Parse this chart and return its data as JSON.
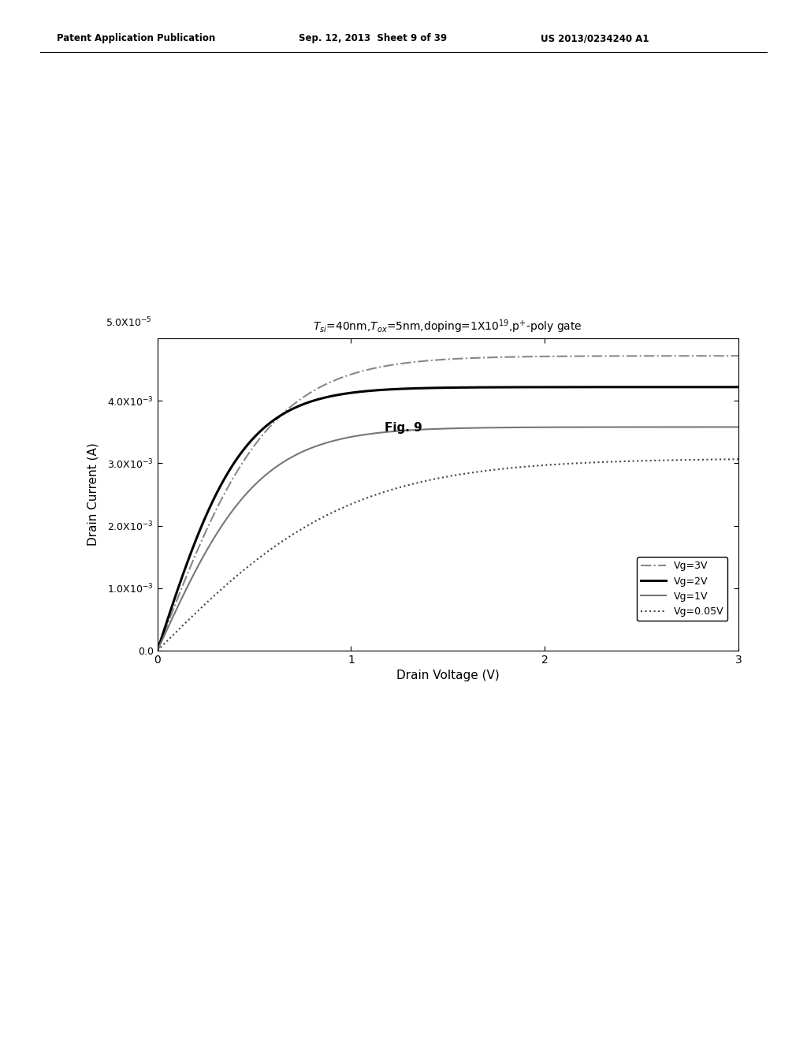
{
  "fig_label": "Fig. 9",
  "patent_header_left": "Patent Application Publication",
  "patent_header_mid": "Sep. 12, 2013  Sheet 9 of 39",
  "patent_header_right": "US 2013/0234240 A1",
  "xlabel": "Drain Voltage (V)",
  "ylabel": "Drain Current (A)",
  "xlim": [
    0,
    3
  ],
  "ylim": [
    0,
    0.005
  ],
  "background_color": "#ffffff",
  "curve_params": [
    {
      "Idsat": 0.00472,
      "vsat": 1.05,
      "label": "Vg=3V",
      "ls": "-.",
      "color": "#888888",
      "lw": 1.5
    },
    {
      "Idsat": 0.00422,
      "vsat": 0.8,
      "label": "Vg=2V",
      "ls": "-",
      "color": "#000000",
      "lw": 2.2
    },
    {
      "Idsat": 0.00358,
      "vsat": 0.95,
      "label": "Vg=1V",
      "ls": "-",
      "color": "#777777",
      "lw": 1.5
    },
    {
      "Idsat": 0.00308,
      "vsat": 1.8,
      "label": "Vg=0.05V",
      "ls": ":",
      "color": "#444444",
      "lw": 1.5
    }
  ]
}
